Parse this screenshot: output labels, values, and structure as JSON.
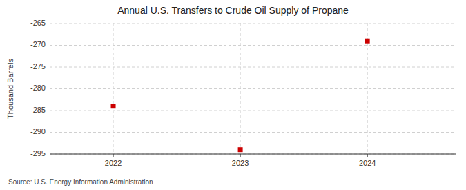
{
  "chart_data": {
    "type": "scatter",
    "title": "Annual U.S. Transfers to Crude Oil Supply of Propane",
    "ylabel": "Thousand Barrels",
    "source": "Source: U.S. Energy Information Administration",
    "x": [
      2022,
      2023,
      2024
    ],
    "values": [
      -284,
      -294,
      -269
    ],
    "color": "#cc0000",
    "marker": "square",
    "xlim": [
      2021.5,
      2024.7
    ],
    "xticks": [
      2022,
      2023,
      2024
    ],
    "ylim": [
      -295,
      -265
    ],
    "yticks": [
      -265,
      -270,
      -275,
      -280,
      -285,
      -290,
      -295
    ],
    "grid": true
  }
}
